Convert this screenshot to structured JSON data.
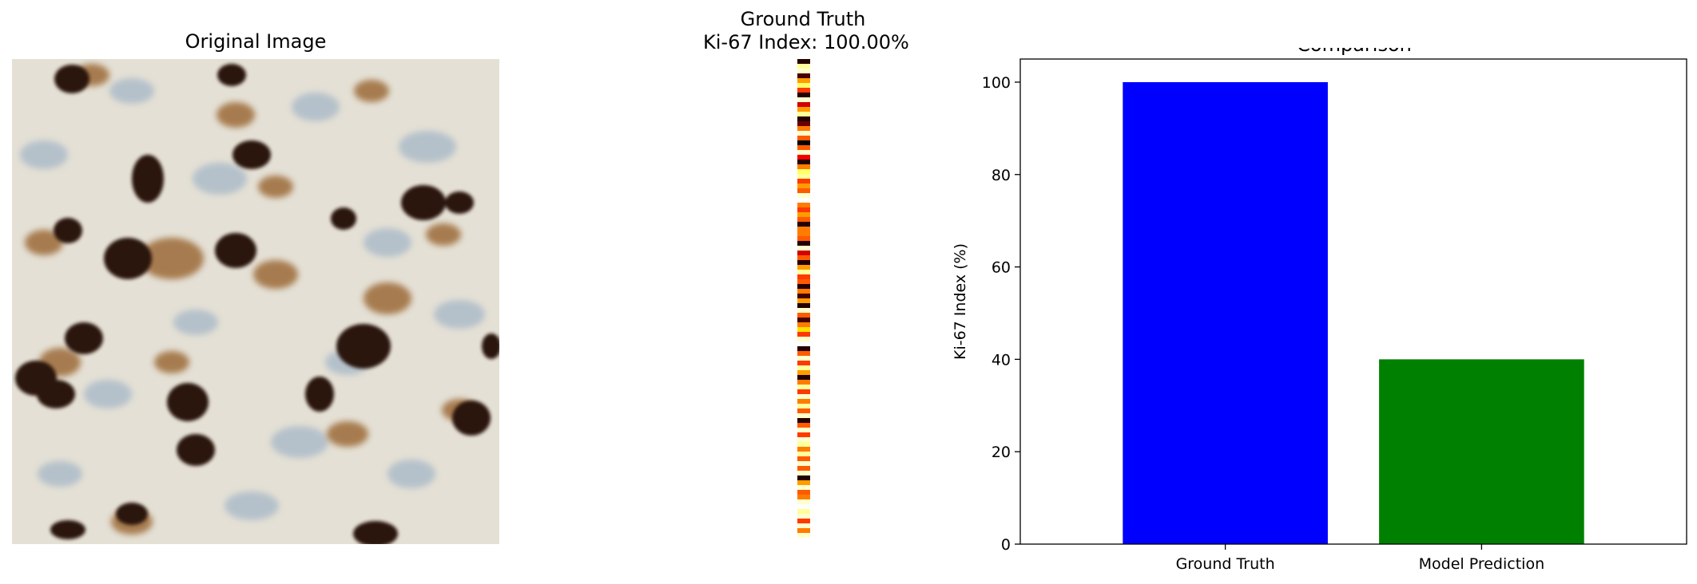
{
  "panels": {
    "original_title": "Original Image",
    "ground_truth_title_line1": "Ground Truth",
    "ground_truth_title_line2": "Ki-67 Index: 100.00%",
    "comparison_title": "Comparison"
  },
  "heatmap_strip": {
    "colormap": "hot",
    "values": [
      0.05,
      0.9,
      0.95,
      0.1,
      0.6,
      0.85,
      0.45,
      0.05,
      0.95,
      0.3,
      0.6,
      0.9,
      0.05,
      0.15,
      0.55,
      0.95,
      0.5,
      0.0,
      0.5,
      0.95,
      0.35,
      0.05,
      0.55,
      0.85,
      0.9,
      0.45,
      0.6,
      0.5,
      0.95,
      1.0,
      0.55,
      0.45,
      0.6,
      0.5,
      0.05,
      0.55,
      0.55,
      0.5,
      0.05,
      0.95,
      0.3,
      0.5,
      0.05,
      0.6,
      0.9,
      0.45,
      0.5,
      0.05,
      0.55,
      0.1,
      0.6,
      0.05,
      0.95,
      0.5,
      0.1,
      0.55,
      0.7,
      0.45,
      0.95,
      1.0,
      0.05,
      0.5,
      0.95,
      0.45,
      0.9,
      0.6,
      0.05,
      0.55,
      0.9,
      0.45,
      0.95,
      0.55,
      0.9,
      0.5,
      0.95,
      0.05,
      0.5,
      0.95,
      0.45,
      0.95,
      0.9,
      0.55,
      0.9,
      0.5,
      0.95,
      0.5,
      0.95,
      0.05,
      0.6,
      0.95,
      0.5,
      0.55,
      0.95,
      1.0,
      0.9,
      0.95,
      0.45,
      0.95,
      0.55,
      0.95
    ]
  },
  "colors": {
    "ground_truth_bar": "#0000ff",
    "model_prediction_bar": "#008000"
  },
  "chart_data": {
    "type": "bar",
    "title": "Comparison",
    "categories": [
      "Ground Truth",
      "Model Prediction"
    ],
    "values": [
      100.0,
      40.0
    ],
    "ylabel": "Ki-67 Index (%)",
    "xlabel": "",
    "ylim": [
      0,
      105
    ],
    "yticks": [
      0,
      20,
      40,
      60,
      80,
      100
    ],
    "grid": false
  }
}
